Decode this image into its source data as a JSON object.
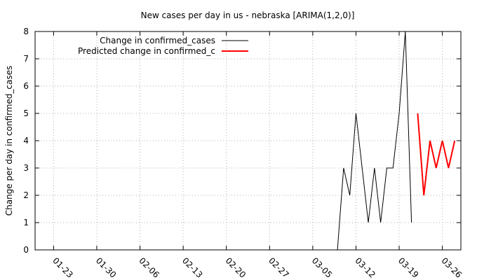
{
  "chart_data": {
    "type": "line",
    "title": "New cases per day in us - nebraska [ARIMA(1,2,0)]",
    "xlabel": "",
    "ylabel": "Change per day in confirmed_cases",
    "x_range": [
      "2020-01-20",
      "2020-03-29"
    ],
    "ylim": [
      0,
      8
    ],
    "y_ticks": [
      0,
      1,
      2,
      3,
      4,
      5,
      6,
      7,
      8
    ],
    "x_ticks": [
      {
        "date": "2020-01-23",
        "label": "01-23"
      },
      {
        "date": "2020-01-30",
        "label": "01-30"
      },
      {
        "date": "2020-02-06",
        "label": "02-06"
      },
      {
        "date": "2020-02-13",
        "label": "02-13"
      },
      {
        "date": "2020-02-20",
        "label": "02-20"
      },
      {
        "date": "2020-02-27",
        "label": "02-27"
      },
      {
        "date": "2020-03-05",
        "label": "03-05"
      },
      {
        "date": "2020-03-12",
        "label": "03-12"
      },
      {
        "date": "2020-03-19",
        "label": "03-19"
      },
      {
        "date": "2020-03-26",
        "label": "03-26"
      }
    ],
    "grid": true,
    "legend_position": "top-left",
    "series": [
      {
        "name": "Change in confirmed_cases",
        "color": "#000000",
        "points": [
          {
            "x": "2020-03-09",
            "y": 0
          },
          {
            "x": "2020-03-10",
            "y": 3
          },
          {
            "x": "2020-03-11",
            "y": 2
          },
          {
            "x": "2020-03-12",
            "y": 5
          },
          {
            "x": "2020-03-13",
            "y": 3
          },
          {
            "x": "2020-03-14",
            "y": 1
          },
          {
            "x": "2020-03-15",
            "y": 3
          },
          {
            "x": "2020-03-16",
            "y": 1
          },
          {
            "x": "2020-03-17",
            "y": 3
          },
          {
            "x": "2020-03-18",
            "y": 3
          },
          {
            "x": "2020-03-19",
            "y": 5
          },
          {
            "x": "2020-03-20",
            "y": 8
          },
          {
            "x": "2020-03-21",
            "y": 1
          }
        ]
      },
      {
        "name": "Predicted change in confirmed_c",
        "color": "#ff0000",
        "points": [
          {
            "x": "2020-03-22",
            "y": 5
          },
          {
            "x": "2020-03-23",
            "y": 2
          },
          {
            "x": "2020-03-24",
            "y": 4
          },
          {
            "x": "2020-03-25",
            "y": 3
          },
          {
            "x": "2020-03-26",
            "y": 4
          },
          {
            "x": "2020-03-27",
            "y": 3
          },
          {
            "x": "2020-03-28",
            "y": 4
          }
        ]
      }
    ]
  }
}
